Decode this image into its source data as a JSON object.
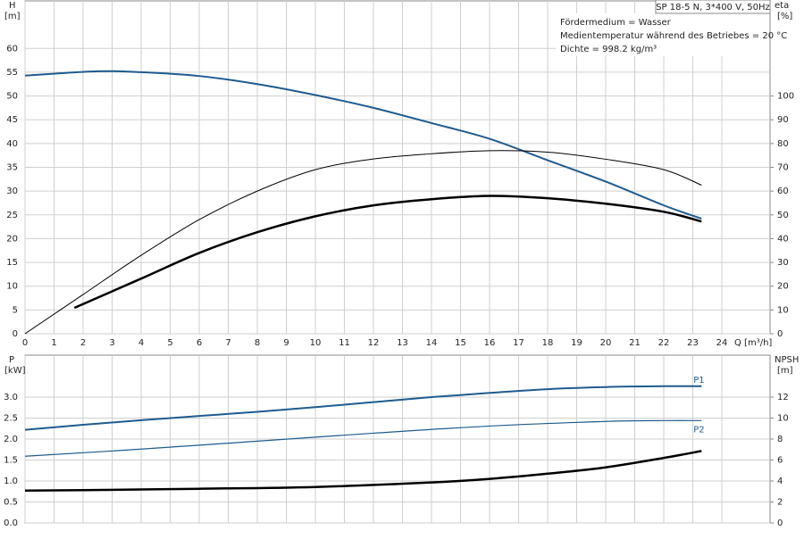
{
  "chart_data": [
    {
      "type": "line",
      "title": "SP 18-5 N, 3*400 V, 50Hz",
      "annotations": [
        "Fördermedium = Wasser",
        "Medientemperatur während des Betriebes = 20 °C",
        "Dichte = 998.2 kg/m³"
      ],
      "ylabel": "H",
      "ylabel_unit": "[m]",
      "y2label": "eta",
      "y2label_unit": "[%]",
      "xlabel": "Q [m³/h]",
      "xlim": [
        0,
        25.66
      ],
      "xticks": [
        0,
        1,
        2,
        3,
        4,
        5,
        6,
        7,
        8,
        9,
        10,
        11,
        12,
        13,
        14,
        15,
        16,
        17,
        18,
        19,
        20,
        21,
        22,
        23,
        24
      ],
      "ylim": [
        0,
        70
      ],
      "yticks": [
        0,
        5,
        10,
        15,
        20,
        25,
        30,
        35,
        40,
        45,
        50,
        55,
        60
      ],
      "y2lim": [
        0,
        140
      ],
      "y2ticks": [
        0,
        10,
        20,
        30,
        40,
        50,
        60,
        70,
        80,
        90,
        100
      ],
      "grid": true,
      "series": [
        {
          "color": "#1f5b8e",
          "line_width": 2,
          "axis": "y",
          "x": [
            0,
            2.5,
            4,
            6,
            8,
            10,
            12,
            14,
            16,
            18,
            20,
            22,
            23.3
          ],
          "values": [
            54.3,
            55.2,
            55,
            54.2,
            52.5,
            50.2,
            47.5,
            44.3,
            41,
            36.5,
            32,
            27,
            24.2
          ]
        },
        {
          "color": "#000000",
          "line_width": 1,
          "axis": "y2",
          "x": [
            0,
            2,
            4,
            6,
            8,
            10,
            12,
            14,
            16,
            18,
            20,
            22,
            23.3
          ],
          "values": [
            0,
            16.5,
            33,
            48,
            60,
            69,
            73.5,
            75.7,
            77,
            76.4,
            73.4,
            69,
            62.5
          ]
        },
        {
          "color": "#000000",
          "line_width": 2.5,
          "axis": "y2",
          "x": [
            1.7,
            4,
            6,
            8,
            10,
            12,
            14,
            16,
            18,
            20,
            22,
            23.3
          ],
          "values": [
            10.9,
            23.2,
            34,
            42.7,
            49.4,
            54,
            56.6,
            58,
            57,
            54.7,
            51.3,
            47.2
          ]
        }
      ]
    },
    {
      "type": "line",
      "ylabel": "P",
      "ylabel_unit": "[kW]",
      "y2label": "NPSH",
      "y2label_unit": "[m]",
      "xlim": [
        0,
        25.66
      ],
      "xticks": [
        0,
        1,
        2,
        3,
        4,
        5,
        6,
        7,
        8,
        9,
        10,
        11,
        12,
        13,
        14,
        15,
        16,
        17,
        18,
        19,
        20,
        21,
        22,
        23,
        24
      ],
      "xtick_labels": false,
      "ylim": [
        0,
        4
      ],
      "yticks": [
        {
          "value": 0,
          "label": "0.0"
        },
        0.5,
        {
          "value": 1,
          "label": "1.0"
        },
        1.5,
        {
          "value": 2,
          "label": "2.0"
        },
        2.5,
        {
          "value": 3,
          "label": "3.0"
        }
      ],
      "y2lim": [
        0,
        16
      ],
      "y2ticks": [
        0,
        2,
        4,
        6,
        8,
        10,
        12
      ],
      "grid": true,
      "series": [
        {
          "name": "P1",
          "label_side": "above",
          "color": "#1f5b8e",
          "line_width": 2,
          "axis": "y",
          "x": [
            0,
            2,
            4,
            6,
            8,
            10,
            12,
            14,
            16,
            18,
            20,
            22,
            23.3
          ],
          "values": [
            2.22,
            2.34,
            2.45,
            2.55,
            2.65,
            2.76,
            2.88,
            3.0,
            3.1,
            3.19,
            3.24,
            3.26,
            3.26
          ]
        },
        {
          "name": "P2",
          "label_side": "below",
          "color": "#1f5b8e",
          "line_width": 1.2,
          "axis": "y",
          "x": [
            0,
            4,
            8,
            12,
            16,
            20,
            22,
            23.3
          ],
          "values": [
            1.59,
            1.76,
            1.95,
            2.14,
            2.31,
            2.42,
            2.44,
            2.44
          ]
        },
        {
          "color": "#000000",
          "line_width": 2.5,
          "axis": "y2",
          "x": [
            0,
            2,
            6,
            10,
            14,
            16,
            18,
            20,
            22,
            23.3
          ],
          "values": [
            3.08,
            3.13,
            3.26,
            3.43,
            3.86,
            4.2,
            4.7,
            5.3,
            6.2,
            6.86
          ]
        }
      ]
    }
  ]
}
